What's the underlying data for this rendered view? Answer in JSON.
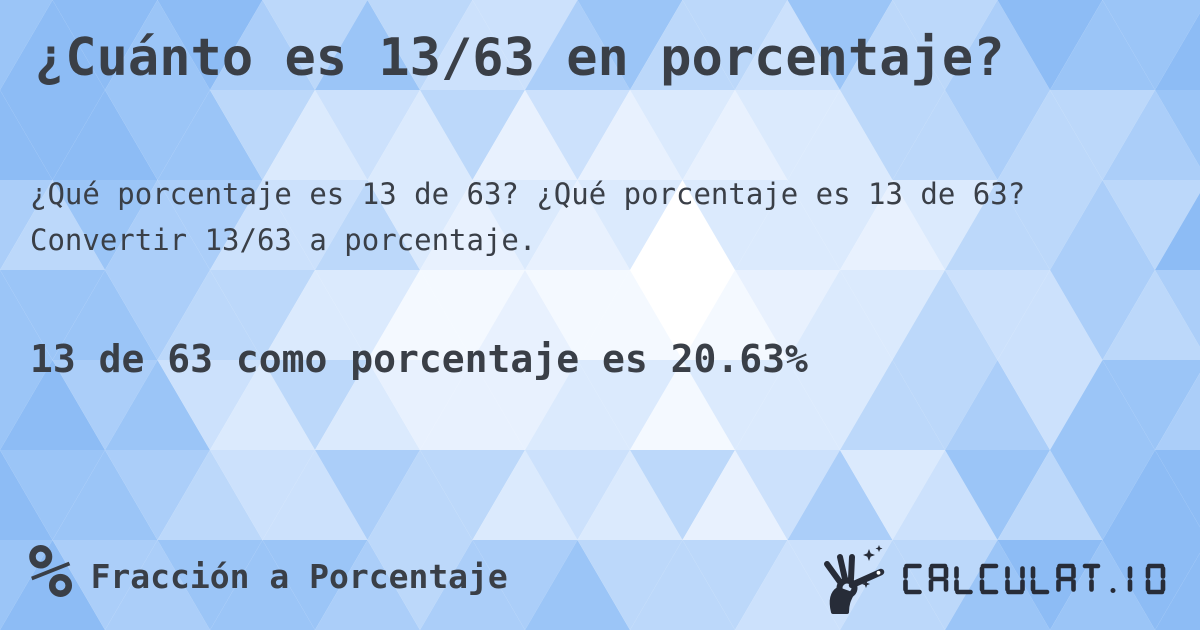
{
  "page": {
    "title": "¿Cuánto es 13/63 en porcentaje?",
    "description": "¿Qué porcentaje es 13 de 63? ¿Qué porcentaje es 13 de 63? Convertir 13/63 a porcentaje.",
    "answer": "13 de 63 como porcentaje es 20.63%"
  },
  "footer": {
    "percent_symbol": "%",
    "category_label": "Fracción a Porcentaje",
    "logo_text": "CALCULAT.IO"
  },
  "colors": {
    "text": "#3a3f47",
    "logo": "#272c38",
    "mosaic_palette": [
      "#ffffff",
      "#f4f9ff",
      "#e8f1fe",
      "#dbeafd",
      "#cce1fc",
      "#bcd8fa",
      "#abcef9",
      "#9bc5f7",
      "#8dbcf5"
    ]
  }
}
